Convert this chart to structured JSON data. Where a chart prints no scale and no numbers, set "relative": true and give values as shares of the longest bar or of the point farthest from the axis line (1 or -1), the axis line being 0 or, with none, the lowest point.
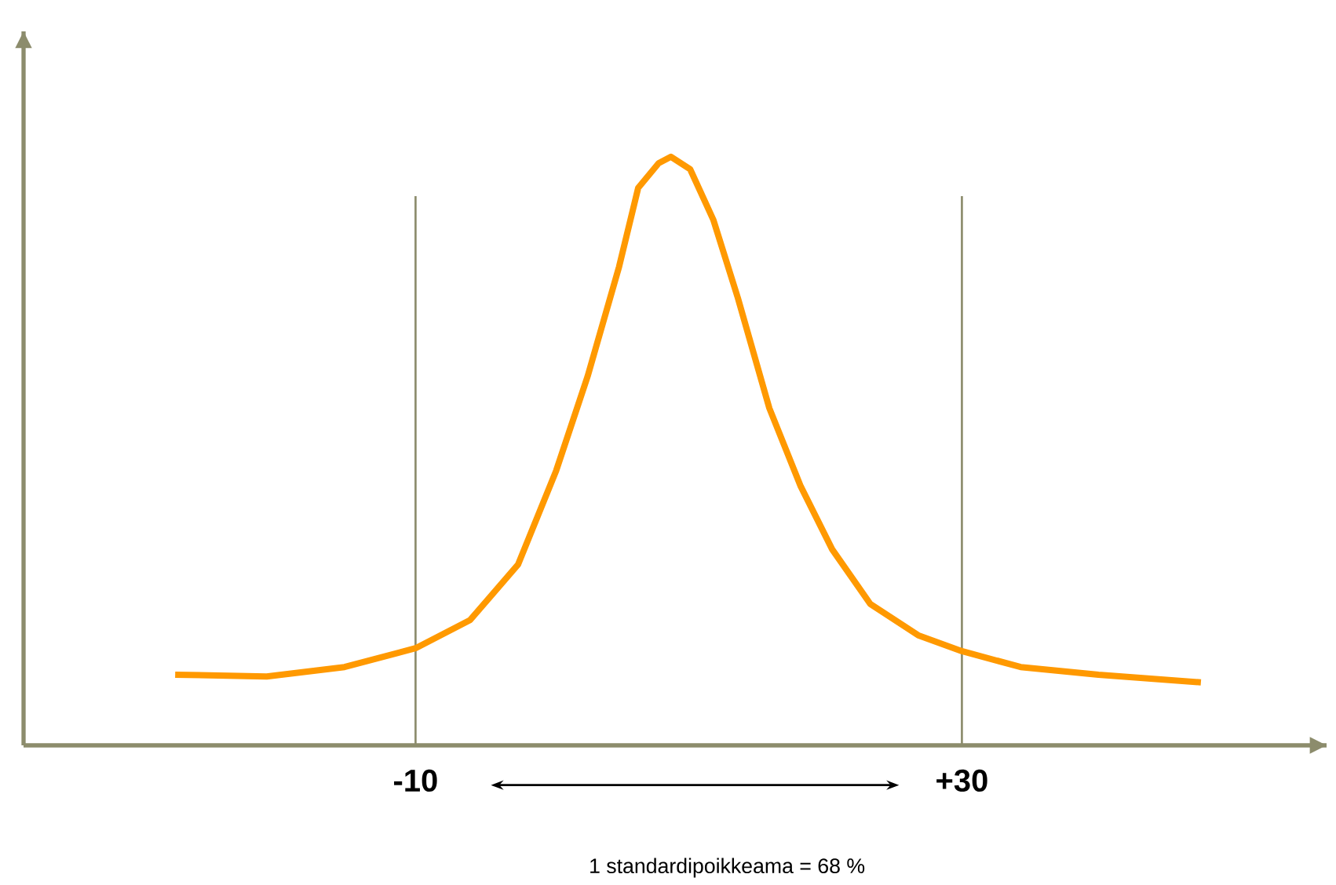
{
  "chart_data": {
    "type": "line",
    "relative": true,
    "color": "#ff9900",
    "x": [
      -27.6,
      -20.9,
      -15.2,
      -10,
      -6.0,
      -2.5,
      0.3,
      2.6,
      4.9,
      6.3,
      7.8,
      8.7,
      10.1,
      11.8,
      13.6,
      15.9,
      18.2,
      20.5,
      23.3,
      26.8,
      30,
      34.3,
      40,
      47.5
    ],
    "values": [
      0.12,
      0.117,
      0.133,
      0.165,
      0.213,
      0.307,
      0.467,
      0.627,
      0.813,
      0.947,
      0.989,
      1,
      0.979,
      0.893,
      0.76,
      0.573,
      0.44,
      0.333,
      0.24,
      0.187,
      0.16,
      0.133,
      0.12,
      0.107
    ],
    "xlim": [
      -38.7,
      56.7
    ],
    "xticks": [
      {
        "value": -10,
        "label": "-10"
      },
      {
        "value": 30,
        "label": "+30"
      }
    ],
    "ref_lines": [
      {
        "axis": "x",
        "value": -10,
        "color": "#8c8c6c"
      },
      {
        "axis": "x",
        "value": 30,
        "color": "#8c8c6c"
      }
    ],
    "annotations": [
      "1 standardipoikkeama = 68 %"
    ],
    "grid": false,
    "marker": "none",
    "line_style": "solid"
  }
}
